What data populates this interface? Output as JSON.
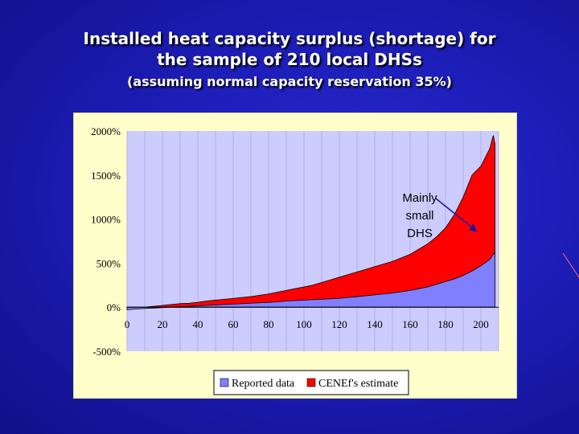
{
  "slide": {
    "title_line1": "Installed heat capacity surplus (shortage) for",
    "title_line2": "the sample of 210 local DHSs",
    "title_line3": "(assuming normal capacity reservation 35%)"
  },
  "colors": {
    "background": "#1d1db8",
    "title": "#ffffff",
    "panel": "#ffffcc",
    "plot_area": "#ccccff",
    "reported": "#8080ff",
    "estimate": "#ff0000",
    "arrow": "#1a1aa0"
  },
  "chart_data": {
    "type": "area",
    "x": [
      0,
      5,
      10,
      15,
      20,
      25,
      30,
      35,
      40,
      45,
      50,
      55,
      60,
      65,
      70,
      75,
      80,
      85,
      90,
      95,
      100,
      105,
      110,
      115,
      120,
      125,
      130,
      135,
      140,
      145,
      150,
      155,
      160,
      165,
      170,
      175,
      180,
      185,
      190,
      195,
      200,
      205,
      207,
      208
    ],
    "series": [
      {
        "name": "Reported data",
        "color": "#8080ff",
        "values": [
          -30,
          -20,
          -15,
          -10,
          -5,
          0,
          5,
          10,
          15,
          20,
          25,
          30,
          35,
          40,
          45,
          50,
          55,
          60,
          70,
          75,
          80,
          85,
          90,
          95,
          100,
          110,
          120,
          130,
          140,
          150,
          160,
          175,
          190,
          210,
          230,
          260,
          290,
          320,
          360,
          410,
          470,
          540,
          600,
          620
        ]
      },
      {
        "name": "CENEf's estimate",
        "color": "#ff0000",
        "values": [
          -20,
          -10,
          0,
          10,
          20,
          30,
          40,
          45,
          55,
          70,
          80,
          90,
          100,
          110,
          120,
          135,
          150,
          170,
          190,
          210,
          230,
          250,
          280,
          310,
          340,
          370,
          400,
          430,
          460,
          490,
          520,
          560,
          600,
          660,
          720,
          800,
          900,
          1050,
          1250,
          1500,
          1600,
          1800,
          1950,
          1850
        ]
      }
    ],
    "xticks": [
      "0",
      "20",
      "40",
      "60",
      "80",
      "100",
      "120",
      "140",
      "160",
      "180",
      "200"
    ],
    "yticks": [
      "2000%",
      "1500%",
      "1000%",
      "500%",
      "0%",
      "-500%"
    ],
    "xlim": [
      0,
      210
    ],
    "ylim": [
      -500,
      2000
    ],
    "grid": "vertical",
    "legend": [
      "Reported data",
      "CENEf's estimate"
    ],
    "legend_position": "bottom",
    "annotation": {
      "lines": [
        "Mainly",
        "small",
        "DHS"
      ],
      "target_x": 198,
      "target_y": 850
    }
  }
}
